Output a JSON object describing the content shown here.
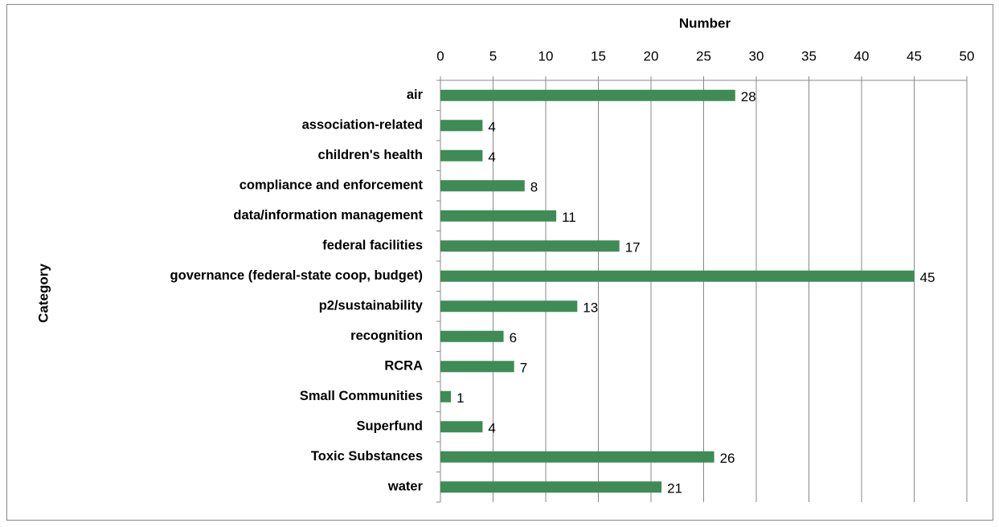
{
  "chart_data": {
    "type": "hbar",
    "x_label": "Number",
    "y_label": "Category",
    "categories": [
      "air",
      "association-related",
      "children's health",
      "compliance and enforcement",
      "data/information management",
      "federal facilities",
      "governance (federal-state coop, budget)",
      "p2/sustainability",
      "recognition",
      "RCRA",
      "Small Communities",
      "Superfund",
      "Toxic Substances",
      "water"
    ],
    "values": [
      28,
      4,
      4,
      8,
      11,
      17,
      45,
      13,
      6,
      7,
      1,
      4,
      26,
      21
    ],
    "color": "#3f8b55",
    "xlim": [
      0,
      50
    ],
    "xticks": [
      0,
      5,
      10,
      15,
      20,
      25,
      30,
      35,
      40,
      45,
      50
    ],
    "grid": true
  }
}
